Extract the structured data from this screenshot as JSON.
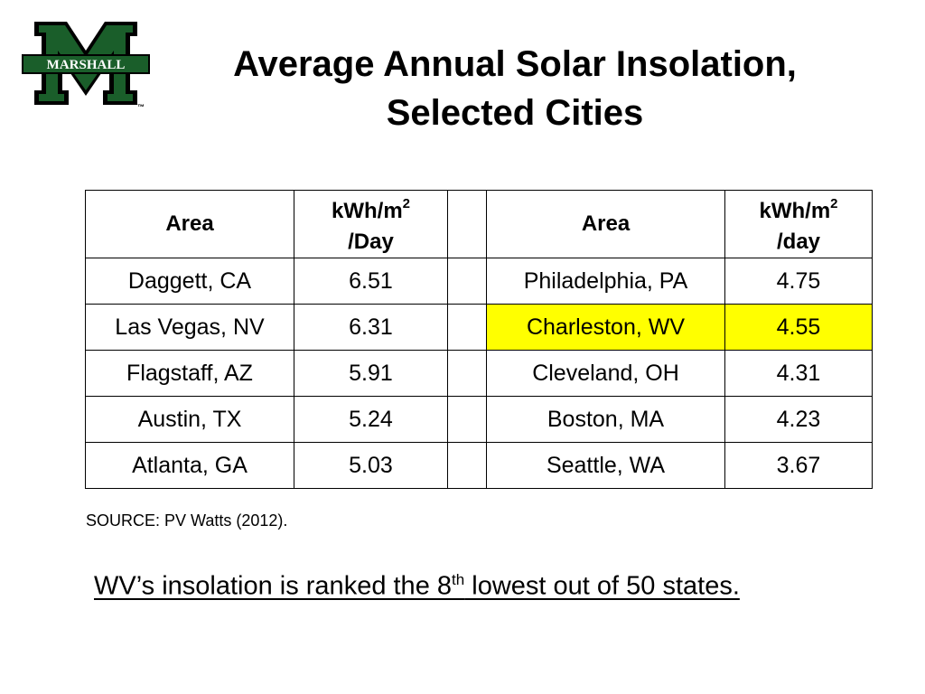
{
  "logo": {
    "text": "MARSHALL",
    "tm": "™",
    "color": "#1a5e2a"
  },
  "title": {
    "line1": "Average Annual Solar Insolation,",
    "line2": "Selected Cities"
  },
  "table": {
    "headers": {
      "area1": "Area",
      "unit1_a": "kWh/m",
      "unit1_sup": "2",
      "unit1_b": "/Day",
      "area2": "Area",
      "unit2_a": "kWh/m",
      "unit2_sup": "2",
      "unit2_b": "/day"
    },
    "rows": [
      {
        "city1": "Daggett, CA",
        "val1": "6.51",
        "city2": "Philadelphia, PA",
        "val2": "4.75"
      },
      {
        "city1": "Las Vegas, NV",
        "val1": "6.31",
        "city2": "Charleston, WV",
        "val2": "4.55"
      },
      {
        "city1": "Flagstaff, AZ",
        "val1": "5.91",
        "city2": "Cleveland, OH",
        "val2": "4.31"
      },
      {
        "city1": "Austin, TX",
        "val1": "5.24",
        "city2": "Boston, MA",
        "val2": "4.23"
      },
      {
        "city1": "Atlanta, GA",
        "val1": "5.03",
        "city2": "Seattle, WA",
        "val2": "3.67"
      }
    ],
    "highlight_color": "#ffff00"
  },
  "source": "SOURCE: PV Watts (2012).",
  "note": {
    "before": "WV’s insolation is ranked the 8",
    "sup": "th",
    "after": " lowest out of 50 states."
  }
}
